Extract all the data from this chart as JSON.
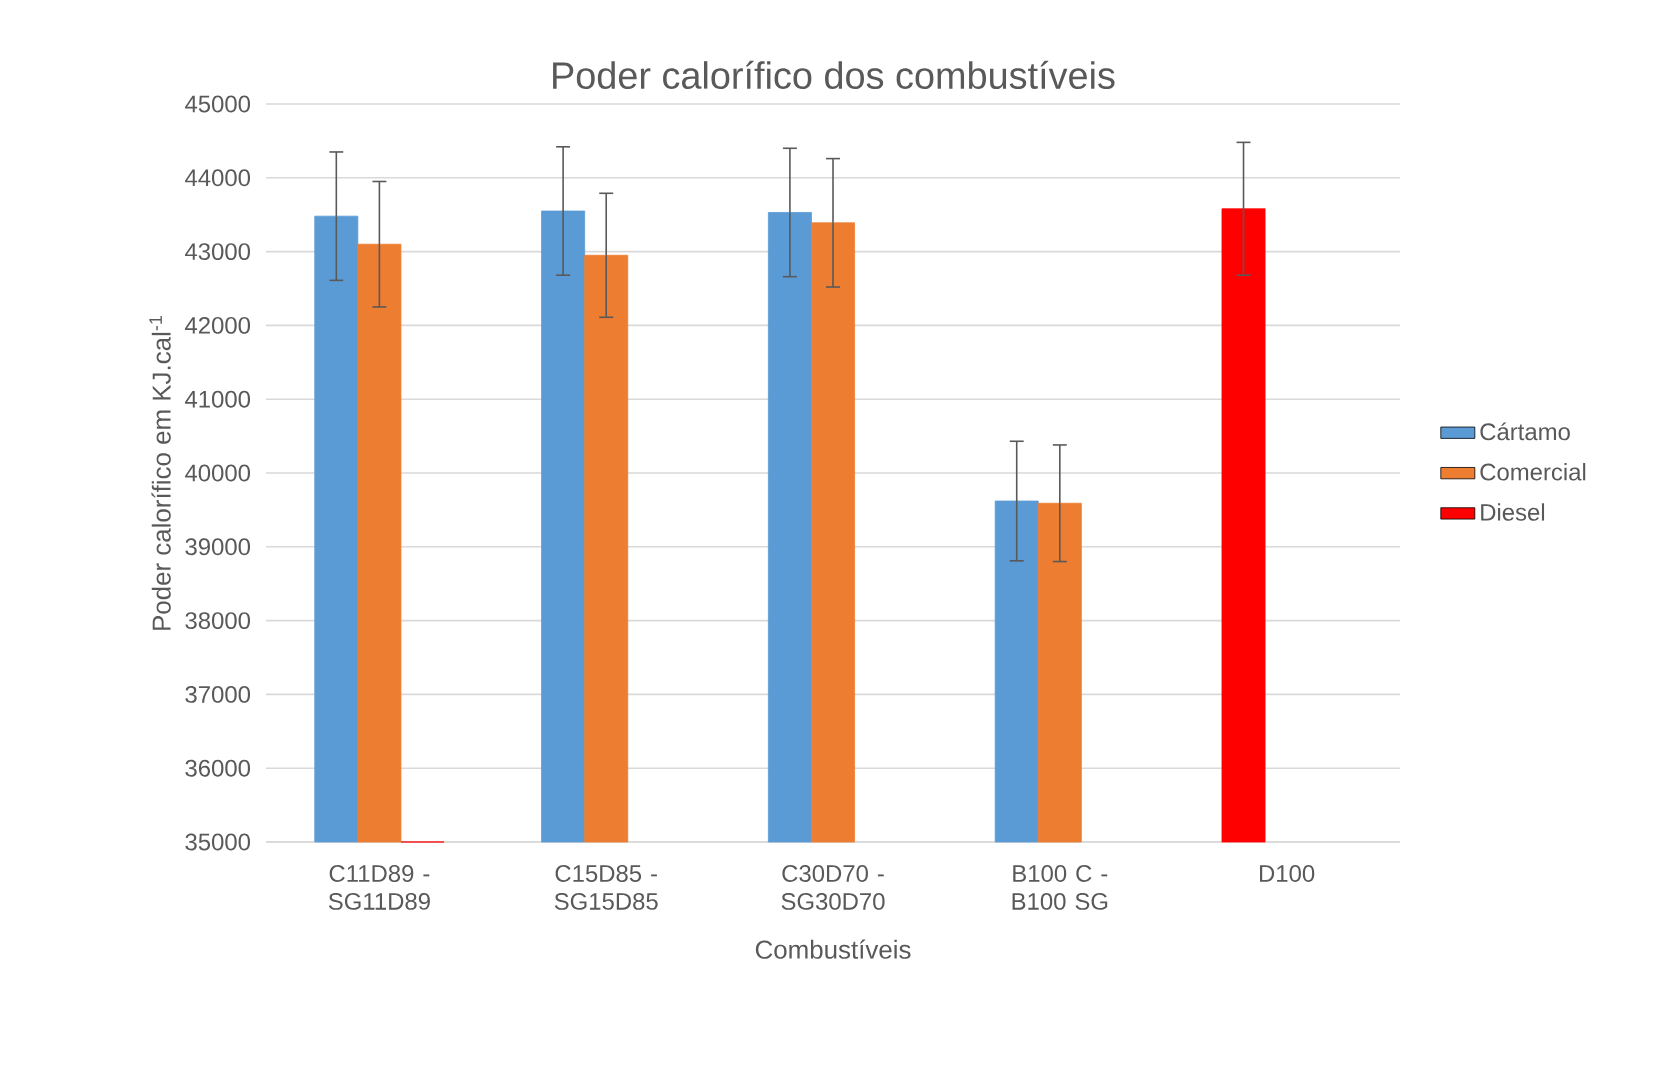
{
  "chart_data": {
    "type": "bar",
    "title": "Poder calorífico dos combustíveis",
    "xlabel": "Combustíveis",
    "ylabel": "Poder calorífico em KJ.cal$^{-1}$",
    "categories": [
      "C11D89 - SG11D89",
      "C15D85 - SG15D85",
      "C30D70 - SG30D70",
      "B100 C - B100 SG",
      "D100"
    ],
    "series": [
      {
        "name": "Cártamo",
        "color": "#5b9bd5",
        "colors": [
          "#5b9bd5",
          "#5b9bd5",
          "#5b9bd5",
          "#5b9bd5",
          "#ff0000"
        ],
        "values": [
          43480,
          43550,
          43530,
          39620,
          43580
        ],
        "errors": [
          870,
          870,
          870,
          810,
          900
        ]
      },
      {
        "name": "Comercial",
        "color": "#ed7d31",
        "values": [
          43100,
          42950,
          43390,
          39590,
          null
        ],
        "errors": [
          850,
          840,
          870,
          790,
          null
        ]
      },
      {
        "name": "Diesel",
        "color": "#ff0000",
        "values": [
          35000,
          null,
          null,
          null,
          null
        ]
      }
    ],
    "ylim": [
      35000,
      45000
    ],
    "yticks": [
      35000,
      36000,
      37000,
      38000,
      39000,
      40000,
      41000,
      42000,
      43000,
      44000,
      45000
    ],
    "grid": "y",
    "legend": "right"
  }
}
